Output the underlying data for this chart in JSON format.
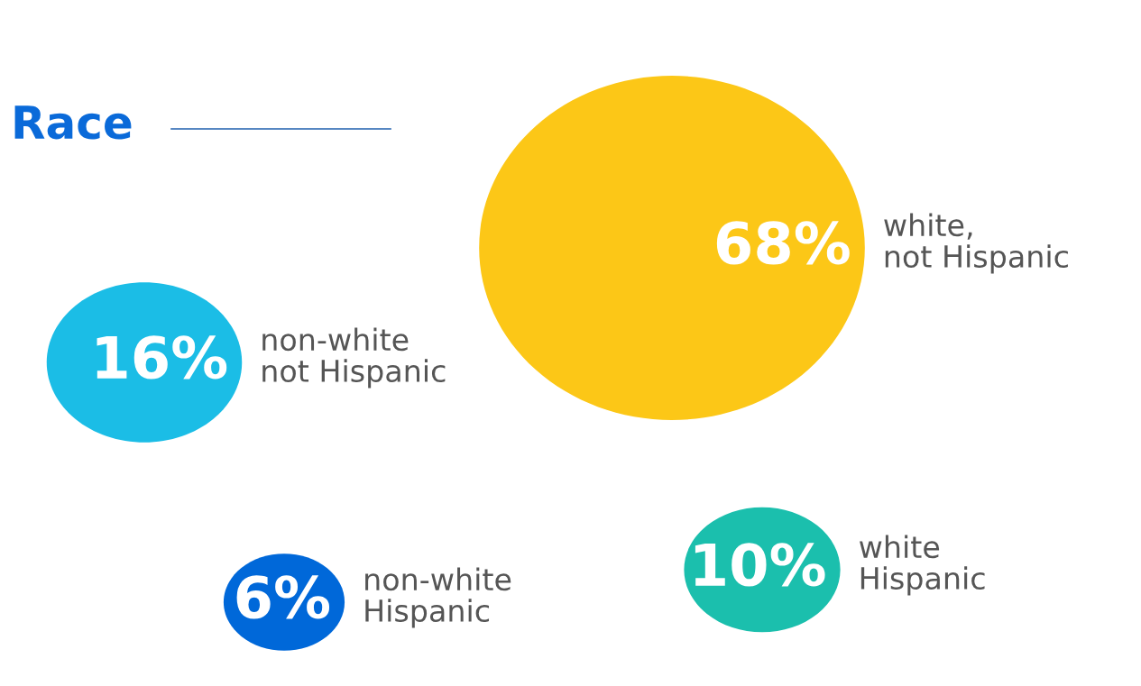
{
  "chart_data": {
    "type": "other",
    "title": "Race",
    "categories": [
      "white,\nnot Hispanic",
      "non-white\nnot Hispanic",
      "white\nHispanic",
      "non-white\nHispanic"
    ],
    "values": [
      68,
      16,
      10,
      6
    ],
    "value_labels": [
      "68%",
      "16%",
      "10%",
      "6%"
    ],
    "colors": [
      "#fcc717",
      "#1bbde6",
      "#1bbfad",
      "#0068d9"
    ]
  }
}
